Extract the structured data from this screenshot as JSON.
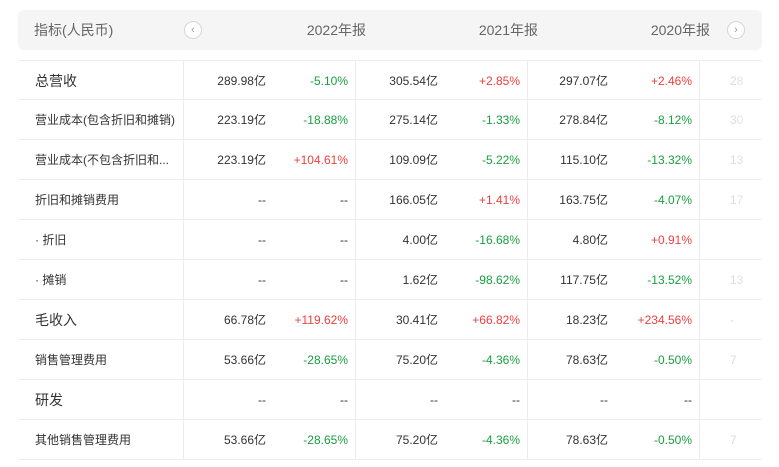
{
  "header": {
    "indicator_label": "指标(人民币)",
    "years": [
      "2022年报",
      "2021年报",
      "2020年报"
    ],
    "prev_icon": "chevron-left-icon",
    "next_icon": "chevron-right-icon"
  },
  "colors": {
    "up": "#f03e3e",
    "down": "#1a9e3f",
    "header_bg": "#f5f5f5"
  },
  "rows": [
    {
      "label": "总营收",
      "v2022": "289.98亿",
      "p2022": "-5.10%",
      "v2021": "305.54亿",
      "p2021": "+2.85%",
      "v2020": "297.07亿",
      "p2020": "+2.46%",
      "next": "28"
    },
    {
      "label": "营业成本(包含折旧和摊销)",
      "v2022": "223.19亿",
      "p2022": "-18.88%",
      "v2021": "275.14亿",
      "p2021": "-1.33%",
      "v2020": "278.84亿",
      "p2020": "-8.12%",
      "next": "30"
    },
    {
      "label": "营业成本(不包含折旧和...",
      "v2022": "223.19亿",
      "p2022": "+104.61%",
      "v2021": "109.09亿",
      "p2021": "-5.22%",
      "v2020": "115.10亿",
      "p2020": "-13.32%",
      "next": "13"
    },
    {
      "label": "折旧和摊销费用",
      "v2022": "--",
      "p2022": "--",
      "v2021": "166.05亿",
      "p2021": "+1.41%",
      "v2020": "163.75亿",
      "p2020": "-4.07%",
      "next": "17"
    },
    {
      "label": "· 折旧",
      "v2022": "--",
      "p2022": "--",
      "v2021": "4.00亿",
      "p2021": "-16.68%",
      "v2020": "4.80亿",
      "p2020": "+0.91%",
      "next": ""
    },
    {
      "label": "· 摊销",
      "v2022": "--",
      "p2022": "--",
      "v2021": "1.62亿",
      "p2021": "-98.62%",
      "v2020": "117.75亿",
      "p2020": "-13.52%",
      "next": "13"
    },
    {
      "label": "毛收入",
      "v2022": "66.78亿",
      "p2022": "+119.62%",
      "v2021": "30.41亿",
      "p2021": "+66.82%",
      "v2020": "18.23亿",
      "p2020": "+234.56%",
      "next": "-"
    },
    {
      "label": "销售管理费用",
      "v2022": "53.66亿",
      "p2022": "-28.65%",
      "v2021": "75.20亿",
      "p2021": "-4.36%",
      "v2020": "78.63亿",
      "p2020": "-0.50%",
      "next": "7"
    },
    {
      "label": "研发",
      "v2022": "--",
      "p2022": "--",
      "v2021": "--",
      "p2021": "--",
      "v2020": "--",
      "p2020": "--",
      "next": ""
    },
    {
      "label": "其他销售管理费用",
      "v2022": "53.66亿",
      "p2022": "-28.65%",
      "v2021": "75.20亿",
      "p2021": "-4.36%",
      "v2020": "78.63亿",
      "p2020": "-0.50%",
      "next": "7"
    }
  ]
}
